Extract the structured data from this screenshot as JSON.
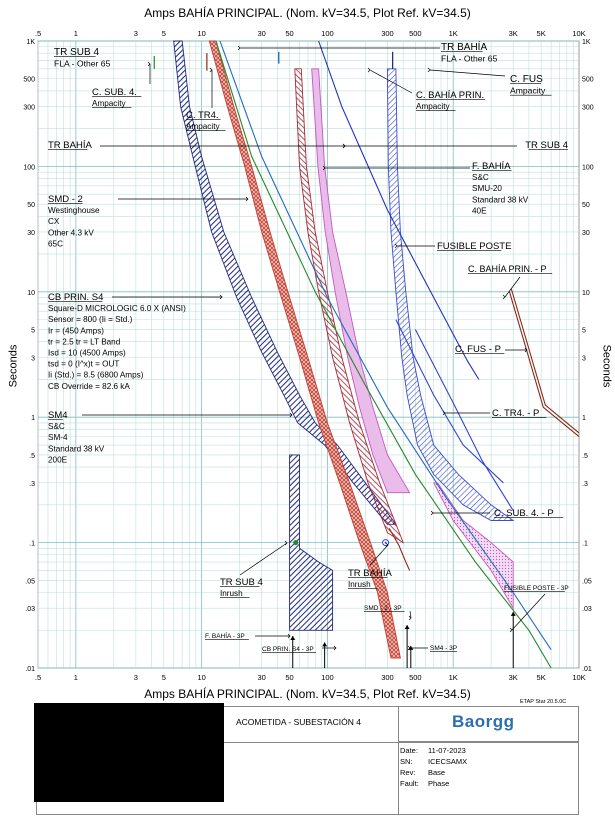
{
  "chart_data": {
    "type": "tcc-loglog",
    "title": "Amps   BAHÍA PRINCIPAL. (Nom. kV=34.5, Plot Ref. kV=34.5)",
    "xlabel": "Amps",
    "ylabel": "Seconds",
    "xlim": [
      0.5,
      10000
    ],
    "ylim": [
      0.01,
      1000
    ],
    "x_ticks": [
      {
        "v": 0.5,
        "label": ".5"
      },
      {
        "v": 1,
        "label": "1"
      },
      {
        "v": 3,
        "label": "3"
      },
      {
        "v": 5,
        "label": "5"
      },
      {
        "v": 10,
        "label": "10"
      },
      {
        "v": 30,
        "label": "30"
      },
      {
        "v": 50,
        "label": "50"
      },
      {
        "v": 100,
        "label": "100"
      },
      {
        "v": 300,
        "label": "300"
      },
      {
        "v": 500,
        "label": "500"
      },
      {
        "v": 1000,
        "label": "1K"
      },
      {
        "v": 3000,
        "label": "3K"
      },
      {
        "v": 5000,
        "label": "5K"
      },
      {
        "v": 10000,
        "label": "10K"
      }
    ],
    "y_ticks": [
      {
        "v": 1000,
        "label": "1K"
      },
      {
        "v": 500,
        "label": "500"
      },
      {
        "v": 300,
        "label": "300"
      },
      {
        "v": 100,
        "label": "100"
      },
      {
        "v": 50,
        "label": "50"
      },
      {
        "v": 30,
        "label": "30"
      },
      {
        "v": 10,
        "label": "10"
      },
      {
        "v": 5,
        "label": "5"
      },
      {
        "v": 3,
        "label": "3"
      },
      {
        "v": 1,
        "label": "1"
      },
      {
        "v": 0.5,
        "label": ".5"
      },
      {
        "v": 0.3,
        "label": ".3"
      },
      {
        "v": 0.1,
        "label": ".1"
      },
      {
        "v": 0.05,
        "label": ".05"
      },
      {
        "v": 0.03,
        "label": ".03"
      },
      {
        "v": 0.01,
        "label": ".01"
      }
    ],
    "annotations": [
      {
        "lines": [
          "TR SUB 4",
          "FLA - Other 65"
        ],
        "underline": [
          true,
          false
        ]
      },
      {
        "lines": [
          "C. SUB. 4.",
          "Ampacity"
        ],
        "underline": [
          true,
          true
        ]
      },
      {
        "lines": [
          "C. TR4.",
          "Ampacity"
        ],
        "underline": [
          true,
          true
        ]
      },
      {
        "lines": [
          "TR BAHÍA",
          "FLA - Other 65"
        ],
        "underline": [
          true,
          false
        ]
      },
      {
        "lines": [
          "C. FUS",
          "Ampacity"
        ],
        "underline": [
          true,
          true
        ]
      },
      {
        "lines": [
          "C. BAHÍA PRIN.",
          "Ampacity"
        ],
        "underline": [
          true,
          true
        ]
      },
      {
        "lines": [
          "TR BAHÍA"
        ],
        "underline": [
          true
        ]
      },
      {
        "lines": [
          "TR SUB 4"
        ],
        "underline": [
          true
        ]
      },
      {
        "lines": [
          "F. BAHÍA",
          "S&C",
          "SMU-20",
          "Standard  38 kV",
          "40E"
        ],
        "underline": [
          true,
          false,
          false,
          false,
          false
        ]
      },
      {
        "lines": [
          "SMD - 2",
          "Westinghouse",
          "CX",
          "Other  4.3 kV",
          "65C"
        ],
        "underline": [
          true,
          false,
          false,
          false,
          false
        ]
      },
      {
        "lines": [
          "FUSIBLE POSTE"
        ],
        "underline": [
          true
        ]
      },
      {
        "lines": [
          "C. BAHÍA PRIN. - P"
        ],
        "underline": [
          true
        ]
      },
      {
        "lines": [
          "CB PRIN. S4",
          "Square-D  MICROLOGIC 6.0 X (ANSI)",
          "Sensor = 800 (Ii = Std.)",
          "Ir = (450 Amps)",
          "tr = 2.5  tr = LT Band",
          "Isd = 10 (4500 Amps)",
          "tsd = 0  (I^x)t = OUT",
          "Ii (Std.) = 8.5 (6800 Amps)",
          "CB Override = 82.6 kA"
        ],
        "underline": [
          true,
          false,
          false,
          false,
          false,
          false,
          false,
          false,
          false
        ]
      },
      {
        "lines": [
          "C. FUS - P"
        ],
        "underline": [
          true
        ]
      },
      {
        "lines": [
          "C. TR4. - P"
        ],
        "underline": [
          true
        ]
      },
      {
        "lines": [
          "SM4",
          "S&C",
          "SM-4",
          "Standard  38 kV",
          "200E"
        ],
        "underline": [
          true,
          false,
          false,
          false,
          false
        ]
      },
      {
        "lines": [
          "C. SUB. 4. - P"
        ],
        "underline": [
          true
        ]
      },
      {
        "lines": [
          "TR SUB 4",
          "Inrush"
        ],
        "underline": [
          true,
          true
        ]
      },
      {
        "lines": [
          "TR BAHÍA",
          "Inrush"
        ],
        "underline": [
          true,
          true
        ]
      },
      {
        "lines": [
          "FUSIBLE POSTE - 3P"
        ],
        "underline": [
          true
        ]
      },
      {
        "lines": [
          "SMD - 2 - 3P"
        ],
        "underline": [
          true
        ]
      },
      {
        "lines": [
          "F. BAHÍA - 3P"
        ],
        "underline": [
          true
        ]
      },
      {
        "lines": [
          "SM4 - 3P"
        ],
        "underline": [
          true
        ]
      },
      {
        "lines": [
          "CB PRIN. S4 - 3P"
        ],
        "underline": [
          true
        ]
      }
    ],
    "series": [
      {
        "name": "C. SUB. 4. Ampacity",
        "color": "#27872a",
        "style": "line",
        "points": [
          [
            13,
            1000
          ],
          [
            25,
            120
          ],
          [
            80,
            10
          ],
          [
            200,
            1.8
          ],
          [
            500,
            0.35
          ],
          [
            1500,
            0.07
          ],
          [
            4000,
            0.02
          ],
          [
            6000,
            0.01
          ]
        ]
      },
      {
        "name": "C. TR4. Ampacity",
        "color": "#1f6cc0",
        "style": "line",
        "points": [
          [
            14,
            1000
          ],
          [
            30,
            120
          ],
          [
            100,
            9
          ],
          [
            300,
            1.2
          ],
          [
            900,
            0.22
          ],
          [
            3000,
            0.04
          ],
          [
            6000,
            0.014
          ]
        ]
      },
      {
        "name": "C. BAHÍA PRIN. Ampacity",
        "color": "#2233bb",
        "style": "line",
        "points": [
          [
            85,
            1000
          ],
          [
            130,
            300
          ],
          [
            300,
            45
          ],
          [
            700,
            9
          ],
          [
            1300,
            2.8
          ],
          [
            1600,
            2
          ]
        ]
      },
      {
        "name": "C. BAHÍA PRIN. - P",
        "color": "#8a2b1a",
        "style": "line",
        "points": [
          [
            2800,
            10
          ],
          [
            5200,
            1.2
          ],
          [
            10000,
            0.7
          ]
        ]
      },
      {
        "name": "C. FUS - P",
        "color": "#8a2b1a",
        "style": "line",
        "points": [
          [
            2900,
            10.5
          ],
          [
            5400,
            1.25
          ],
          [
            10000,
            0.75
          ]
        ]
      },
      {
        "name": "C. TR4. - P (upper)",
        "color": "#3344cc",
        "style": "line",
        "points": [
          [
            350,
            6
          ],
          [
            700,
            1.5
          ],
          [
            1200,
            0.6
          ],
          [
            2500,
            0.3
          ]
        ]
      },
      {
        "name": "C. SUB. 4. - P (upper)",
        "color": "#3344cc",
        "style": "line",
        "points": [
          [
            500,
            5
          ],
          [
            1000,
            1.3
          ],
          [
            1700,
            0.45
          ],
          [
            3000,
            0.18
          ]
        ]
      },
      {
        "name": "TR BAHÍA Inrush",
        "color": "#8a2b1a",
        "style": "line",
        "points": [
          [
            310,
            0.13
          ],
          [
            370,
            0.095
          ],
          [
            420,
            0.07
          ],
          [
            450,
            0.06
          ]
        ]
      }
    ],
    "bands": [
      {
        "name": "CB PRIN. S4",
        "color": "#1a1f7a",
        "hatch": "diag",
        "upper": [
          [
            7,
            1000
          ],
          [
            8,
            300
          ],
          [
            10,
            120
          ],
          [
            15,
            30
          ],
          [
            25,
            9
          ],
          [
            40,
            3.3
          ],
          [
            60,
            1.5
          ],
          [
            80,
            0.9
          ],
          [
            120,
            0.6
          ],
          [
            200,
            0.3
          ],
          [
            350,
            0.14
          ]
        ],
        "lower": [
          [
            6,
            1000
          ],
          [
            6.8,
            300
          ],
          [
            8.5,
            120
          ],
          [
            12,
            30
          ],
          [
            19,
            9
          ],
          [
            30,
            3.3
          ],
          [
            45,
            1.5
          ],
          [
            58,
            0.9
          ],
          [
            95,
            0.6
          ],
          [
            160,
            0.3
          ],
          [
            300,
            0.14
          ]
        ]
      },
      {
        "name": "SM4",
        "color": "#c0392b",
        "hatch": "cross",
        "upper": [
          [
            13,
            1000
          ],
          [
            18,
            300
          ],
          [
            25,
            100
          ],
          [
            35,
            30
          ],
          [
            50,
            9
          ],
          [
            70,
            3
          ],
          [
            100,
            0.9
          ],
          [
            150,
            0.3
          ],
          [
            220,
            0.1
          ],
          [
            300,
            0.04
          ],
          [
            380,
            0.012
          ]
        ],
        "lower": [
          [
            11.5,
            1000
          ],
          [
            16,
            300
          ],
          [
            22,
            100
          ],
          [
            30,
            30
          ],
          [
            43,
            9
          ],
          [
            60,
            3
          ],
          [
            85,
            0.9
          ],
          [
            125,
            0.3
          ],
          [
            180,
            0.1
          ],
          [
            250,
            0.04
          ],
          [
            320,
            0.012
          ]
        ]
      },
      {
        "name": "SMD - 2",
        "color": "#a02030",
        "hatch": "diag",
        "upper": [
          [
            62,
            600
          ],
          [
            68,
            100
          ],
          [
            80,
            30
          ],
          [
            100,
            10
          ],
          [
            130,
            3
          ],
          [
            180,
            0.9
          ],
          [
            260,
            0.3
          ],
          [
            400,
            0.1
          ]
        ],
        "lower": [
          [
            55,
            600
          ],
          [
            60,
            100
          ],
          [
            70,
            30
          ],
          [
            85,
            10
          ],
          [
            110,
            3
          ],
          [
            150,
            0.9
          ],
          [
            210,
            0.3
          ],
          [
            300,
            0.12
          ]
        ]
      },
      {
        "name": "F. BAHÍA",
        "color": "#c050c0",
        "hatch": "fill",
        "upper": [
          [
            85,
            600
          ],
          [
            95,
            100
          ],
          [
            110,
            30
          ],
          [
            140,
            10
          ],
          [
            180,
            3
          ],
          [
            230,
            1.2
          ],
          [
            300,
            0.5
          ],
          [
            450,
            0.25
          ]
        ],
        "lower": [
          [
            75,
            600
          ],
          [
            84,
            100
          ],
          [
            96,
            30
          ],
          [
            115,
            10
          ],
          [
            145,
            3
          ],
          [
            180,
            1.2
          ],
          [
            230,
            0.5
          ],
          [
            300,
            0.25
          ]
        ]
      },
      {
        "name": "FUSIBLE POSTE",
        "color": "#3344cc",
        "hatch": "diag",
        "upper": [
          [
            350,
            600
          ],
          [
            360,
            100
          ],
          [
            380,
            30
          ],
          [
            420,
            10
          ],
          [
            480,
            3
          ],
          [
            550,
            1.5
          ],
          [
            700,
            0.6
          ],
          [
            1100,
            0.35
          ],
          [
            2000,
            0.2
          ],
          [
            3000,
            0.15
          ]
        ],
        "lower": [
          [
            300,
            600
          ],
          [
            305,
            100
          ],
          [
            320,
            30
          ],
          [
            350,
            10
          ],
          [
            390,
            3
          ],
          [
            430,
            1.5
          ],
          [
            520,
            0.6
          ],
          [
            700,
            0.35
          ],
          [
            1200,
            0.2
          ],
          [
            2000,
            0.15
          ]
        ]
      },
      {
        "name": "FUSIBLE POSTE - 3P region",
        "color": "#c050c0",
        "hatch": "dots",
        "upper": [
          [
            750,
            0.3
          ],
          [
            1200,
            0.15
          ],
          [
            2000,
            0.1
          ],
          [
            3000,
            0.07
          ]
        ],
        "lower": [
          [
            700,
            0.3
          ],
          [
            1000,
            0.15
          ],
          [
            2000,
            0.06
          ],
          [
            3000,
            0.03
          ]
        ]
      },
      {
        "name": "TR SUB 4 Inrush",
        "color": "#1a1f7a",
        "hatch": "diag",
        "upper": [
          [
            50,
            0.5
          ],
          [
            60,
            0.5
          ],
          [
            60,
            0.09
          ],
          [
            85,
            0.07
          ],
          [
            110,
            0.06
          ],
          [
            110,
            0.02
          ]
        ],
        "lower": [
          [
            50,
            0.02
          ]
        ]
      }
    ]
  },
  "footer": {
    "etap": "ETAP Star 20.5.0C",
    "project": "ACOMETIDA - SUBESTACIÓN 4",
    "logo": "Baorgg",
    "date_key": "Date:",
    "date_val": "11-07-2023",
    "sn_key": "SN:",
    "sn_val": "ICECSAMX",
    "rev_key": "Rev:",
    "rev_val": "Base",
    "fault_key": "Fault:",
    "fault_val": "Phase"
  }
}
